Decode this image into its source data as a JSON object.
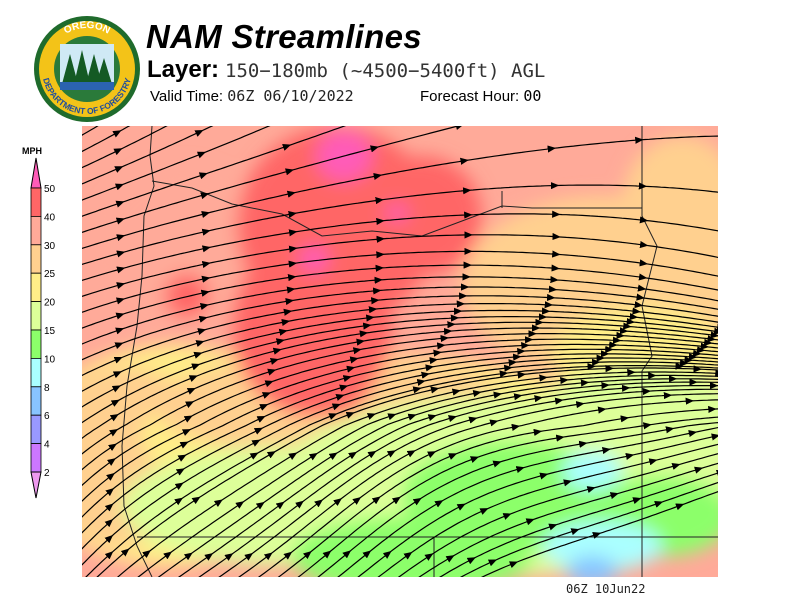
{
  "logo": {
    "text_top": "OREGON",
    "text_bottom": "DEPARTMENT OF FORESTRY"
  },
  "header": {
    "title": "NAM Streamlines",
    "layer_label": "Layer:",
    "layer_value": "150−180mb (~4500−5400ft) AGL",
    "valid_label": "Valid Time:",
    "valid_value": "06Z 06/10/2022",
    "forecast_label": "Forecast Hour:",
    "forecast_value": "00"
  },
  "legend": {
    "unit": "MPH",
    "labels": [
      "50",
      "40",
      "30",
      "25",
      "20",
      "15",
      "10",
      "8",
      "6",
      "4",
      "2"
    ],
    "colors": [
      "#ff5cb8",
      "#ff6666",
      "#ffaa99",
      "#ffd08f",
      "#ffee88",
      "#ddff99",
      "#8cff6a",
      "#aaffff",
      "#88c4ff",
      "#9999ff",
      "#cc77ff",
      "#ee99ee"
    ]
  },
  "map": {
    "base_color": "#ffaa99",
    "line_color": "#000000"
  },
  "footer": {
    "stamp": "06Z 10Jun22"
  }
}
